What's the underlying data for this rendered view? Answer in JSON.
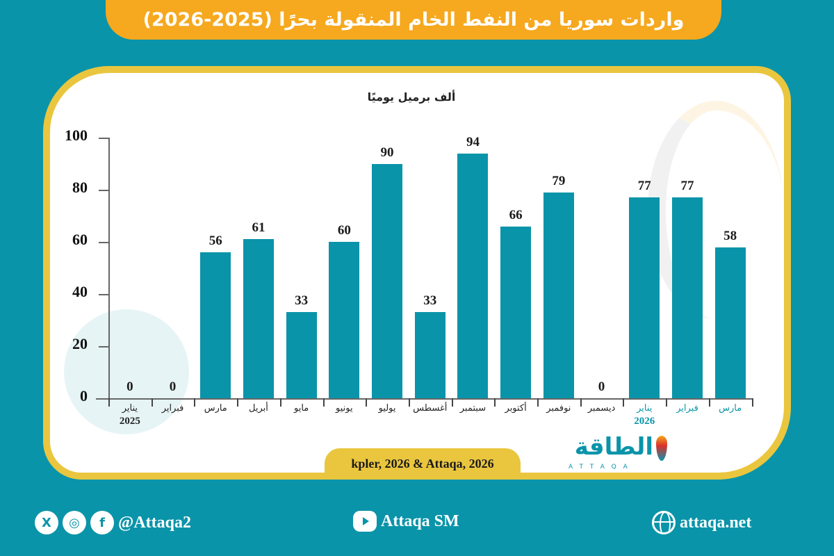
{
  "header": {
    "title": "واردات سوريا من النفط الخام المنقولة بحرًا (2025-2026)"
  },
  "chart": {
    "unit_label": "ألف برميل يوميًا",
    "y_ticks": [
      "100",
      "80",
      "60",
      "40",
      "20",
      "0"
    ],
    "source": "kpler, 2026 & Attaqa, 2026"
  },
  "chart_data": {
    "type": "bar",
    "title": "واردات سوريا من النفط الخام المنقولة بحرًا (2025-2026)",
    "ylabel": "ألف برميل يوميًا",
    "xlabel": "",
    "ylim": [
      0,
      100
    ],
    "y_ticks": [
      0,
      20,
      40,
      60,
      80,
      100
    ],
    "grid": false,
    "categories": [
      "يناير 2025",
      "فبراير",
      "مارس",
      "أبريل",
      "مايو",
      "يونيو",
      "يوليو",
      "أغسطس",
      "سبتمبر",
      "أكتوبر",
      "نوفمبر",
      "ديسمبر",
      "يناير 2026",
      "فبراير",
      "مارس"
    ],
    "values": [
      0,
      0,
      56,
      61,
      33,
      60,
      90,
      33,
      94,
      66,
      79,
      0,
      77,
      77,
      58
    ],
    "bar_color": "#0a94a9",
    "highlight_color_2026_labels": "#0a94a9"
  },
  "x_labels": [
    {
      "month": "يناير",
      "year": "2025",
      "hl": false
    },
    {
      "month": "فبراير",
      "year": "",
      "hl": false
    },
    {
      "month": "مارس",
      "year": "",
      "hl": false
    },
    {
      "month": "أبريل",
      "year": "",
      "hl": false
    },
    {
      "month": "مايو",
      "year": "",
      "hl": false
    },
    {
      "month": "يونيو",
      "year": "",
      "hl": false
    },
    {
      "month": "يوليو",
      "year": "",
      "hl": false
    },
    {
      "month": "أغسطس",
      "year": "",
      "hl": false
    },
    {
      "month": "سبتمبر",
      "year": "",
      "hl": false
    },
    {
      "month": "أكتوبر",
      "year": "",
      "hl": false
    },
    {
      "month": "نوفمبر",
      "year": "",
      "hl": false
    },
    {
      "month": "ديسمبر",
      "year": "",
      "hl": false
    },
    {
      "month": "يناير",
      "year": "2026",
      "hl": true
    },
    {
      "month": "فبراير",
      "year": "",
      "hl": true
    },
    {
      "month": "مارس",
      "year": "",
      "hl": true
    }
  ],
  "logo": {
    "arabic": "الطاقة",
    "english": "ATTAQA"
  },
  "footer": {
    "social_handle": "@Attaqa2",
    "youtube": "Attaqa SM",
    "website": "attaqa.net",
    "x_icon_glyph": "X",
    "fb_icon_glyph": "f",
    "ig_icon_glyph": "◎"
  },
  "colors": {
    "background": "#0a94a9",
    "banner": "#f6a81e",
    "card_border": "#eac63f",
    "bar": "#0a94a9"
  }
}
